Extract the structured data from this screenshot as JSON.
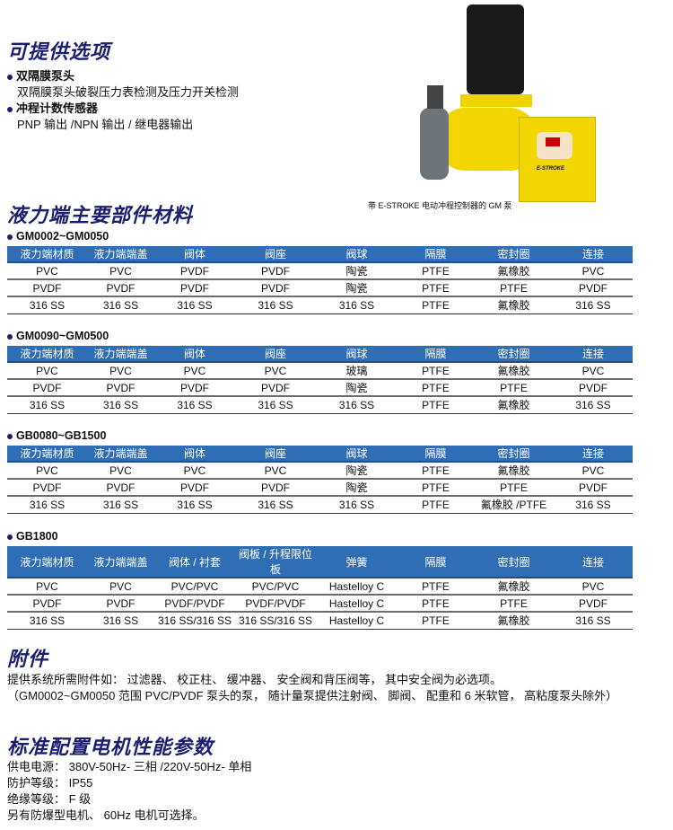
{
  "options": {
    "title": "可提供选项",
    "items": [
      {
        "name": "双隔膜泵头",
        "desc": "双隔膜泵头破裂压力表检测及压力开关检测"
      },
      {
        "name": "冲程计数传感器",
        "desc": "PNP 输出 /NPN 输出 / 继电器输出"
      }
    ]
  },
  "image": {
    "caption": "带 E-STROKE 电动冲程控制器的 GM 泵",
    "logo": "E-STROKE"
  },
  "materials": {
    "title": "液力端主要部件材料",
    "tables": [
      {
        "label": "GM0002~GM0050",
        "headers": [
          "液力端材质",
          "液力端端盖",
          "阀体",
          "阀座",
          "阀球",
          "隔膜",
          "密封圈",
          "连接"
        ],
        "rows": [
          [
            "PVC",
            "PVC",
            "PVDF",
            "PVDF",
            "陶瓷",
            "PTFE",
            "氟橡胶",
            "PVC"
          ],
          [
            "PVDF",
            "PVDF",
            "PVDF",
            "PVDF",
            "陶瓷",
            "PTFE",
            "PTFE",
            "PVDF"
          ],
          [
            "316 SS",
            "316 SS",
            "316 SS",
            "316 SS",
            "316 SS",
            "PTFE",
            "氟橡胶",
            "316 SS"
          ]
        ]
      },
      {
        "label": "GM0090~GM0500",
        "headers": [
          "液力端材质",
          "液力端端盖",
          "阀体",
          "阀座",
          "阀球",
          "隔膜",
          "密封圈",
          "连接"
        ],
        "rows": [
          [
            "PVC",
            "PVC",
            "PVC",
            "PVC",
            "玻璃",
            "PTFE",
            "氟橡胶",
            "PVC"
          ],
          [
            "PVDF",
            "PVDF",
            "PVDF",
            "PVDF",
            "陶瓷",
            "PTFE",
            "PTFE",
            "PVDF"
          ],
          [
            "316 SS",
            "316 SS",
            "316 SS",
            "316 SS",
            "316 SS",
            "PTFE",
            "氟橡胶",
            "316 SS"
          ]
        ]
      },
      {
        "label": "GB0080~GB1500",
        "headers": [
          "液力端材质",
          "液力端端盖",
          "阀体",
          "阀座",
          "阀球",
          "隔膜",
          "密封圈",
          "连接"
        ],
        "rows": [
          [
            "PVC",
            "PVC",
            "PVC",
            "PVC",
            "陶瓷",
            "PTFE",
            "氟橡胶",
            "PVC"
          ],
          [
            "PVDF",
            "PVDF",
            "PVDF",
            "PVDF",
            "陶瓷",
            "PTFE",
            "PTFE",
            "PVDF"
          ],
          [
            "316 SS",
            "316 SS",
            "316 SS",
            "316 SS",
            "316 SS",
            "PTFE",
            "氟橡胶 /PTFE",
            "316 SS"
          ]
        ]
      },
      {
        "label": "GB1800",
        "headers": [
          "液力端材质",
          "液力端端盖",
          "阀体 / 衬套",
          "阀板 / 升程限位板",
          "弹簧",
          "隔膜",
          "密封圈",
          "连接"
        ],
        "rows": [
          [
            "PVC",
            "PVC",
            "PVC/PVC",
            "PVC/PVC",
            "Hastelloy C",
            "PTFE",
            "氟橡胶",
            "PVC"
          ],
          [
            "PVDF",
            "PVDF",
            "PVDF/PVDF",
            "PVDF/PVDF",
            "Hastelloy C",
            "PTFE",
            "PTFE",
            "PVDF"
          ],
          [
            "316 SS",
            "316 SS",
            "316 SS/316 SS",
            "316 SS/316 SS",
            "Hastelloy C",
            "PTFE",
            "氟橡胶",
            "316 SS"
          ]
        ]
      }
    ]
  },
  "accessories": {
    "title": "附件",
    "lines": [
      "提供系统所需附件如： 过滤器、 校正柱、 缓冲器、 安全阀和背压阀等， 其中安全阀为必选项。",
      "（GM0002~GM0050 范围 PVC/PVDF 泵头的泵， 随计量泵提供注射阀、 脚阀、 配重和 6 米软管， 高粘度泵头除外）"
    ]
  },
  "motor": {
    "title": "标准配置电机性能参数",
    "lines": [
      "供电电源： 380V-50Hz- 三相 /220V-50Hz- 单相",
      "防护等级： IP55",
      "绝缘等级： F 级",
      "另有防爆型电机、 60Hz 电机可选择。"
    ]
  },
  "colors": {
    "heading": "#1c1f6e",
    "table_header": "#2f6db5"
  }
}
